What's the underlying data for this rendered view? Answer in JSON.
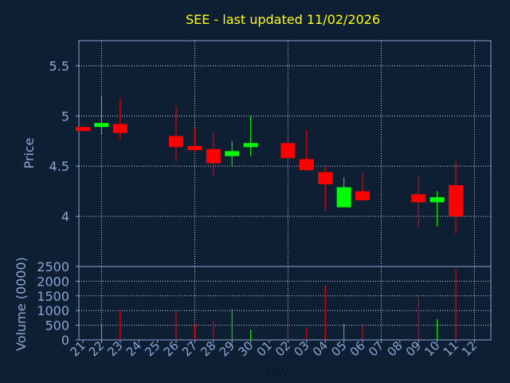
{
  "chart_data": {
    "type": "candlestick",
    "title": "SEE - last updated 11/02/2026",
    "xlabel": "Day",
    "price_panel": {
      "ylabel": "Price",
      "ylim": [
        3.5,
        5.75
      ],
      "yticks": [
        "5.5",
        "5",
        "4.5",
        "4"
      ],
      "ytick_values": [
        5.5,
        5.0,
        4.5,
        4.0
      ]
    },
    "volume_panel": {
      "ylabel": "Volume (0000)",
      "ylim": [
        0,
        2500
      ],
      "yticks": [
        "2500",
        "2000",
        "1500",
        "1000",
        "500",
        "0"
      ],
      "ytick_values": [
        2500,
        2000,
        1500,
        1000,
        500,
        0
      ]
    },
    "x_ticks": [
      "21",
      "22",
      "23",
      "24",
      "25",
      "26",
      "27",
      "28",
      "29",
      "30",
      "01",
      "02",
      "03",
      "04",
      "05",
      "06",
      "07",
      "08",
      "09",
      "10",
      "11",
      "12"
    ],
    "candles": [
      {
        "day": "21",
        "open": 4.89,
        "high": 4.89,
        "low": 4.85,
        "close": 4.85,
        "volume": 0
      },
      {
        "day": "22",
        "open": 4.89,
        "high": 5.2,
        "low": 4.82,
        "close": 4.93,
        "volume": 500
      },
      {
        "day": "23",
        "open": 4.92,
        "high": 5.17,
        "low": 4.76,
        "close": 4.83,
        "volume": 1000
      },
      {
        "day": "26",
        "open": 4.8,
        "high": 5.1,
        "low": 4.55,
        "close": 4.69,
        "volume": 1000
      },
      {
        "day": "27",
        "open": 4.7,
        "high": 4.88,
        "low": 4.64,
        "close": 4.66,
        "volume": 550
      },
      {
        "day": "28",
        "open": 4.67,
        "high": 4.85,
        "low": 4.4,
        "close": 4.53,
        "volume": 650
      },
      {
        "day": "29",
        "open": 4.6,
        "high": 4.75,
        "low": 4.5,
        "close": 4.65,
        "volume": 1050
      },
      {
        "day": "30",
        "open": 4.69,
        "high": 5.0,
        "low": 4.6,
        "close": 4.73,
        "volume": 350
      },
      {
        "day": "02",
        "open": 4.73,
        "high": 4.8,
        "low": 4.5,
        "close": 4.58,
        "volume": 900
      },
      {
        "day": "03",
        "open": 4.57,
        "high": 4.86,
        "low": 4.45,
        "close": 4.46,
        "volume": 400
      },
      {
        "day": "04",
        "open": 4.44,
        "high": 4.5,
        "low": 4.06,
        "close": 4.32,
        "volume": 1850
      },
      {
        "day": "05",
        "open": 4.09,
        "high": 4.39,
        "low": 4.09,
        "close": 4.29,
        "volume": 550
      },
      {
        "day": "06",
        "open": 4.25,
        "high": 4.43,
        "low": 4.15,
        "close": 4.16,
        "volume": 500
      },
      {
        "day": "09",
        "open": 4.22,
        "high": 4.4,
        "low": 3.9,
        "close": 4.14,
        "volume": 1450
      },
      {
        "day": "10",
        "open": 4.14,
        "high": 4.25,
        "low": 3.9,
        "close": 4.19,
        "volume": 700
      },
      {
        "day": "11",
        "open": 4.31,
        "high": 4.55,
        "low": 3.83,
        "close": 4.0,
        "volume": 2400
      }
    ],
    "colors": {
      "background": "#0f1f33",
      "grid": "#c8d4e8",
      "up": "#00ff00",
      "down": "#ff0000",
      "title": "#ffff00",
      "text": "#8aa6d4"
    },
    "grid": true
  }
}
